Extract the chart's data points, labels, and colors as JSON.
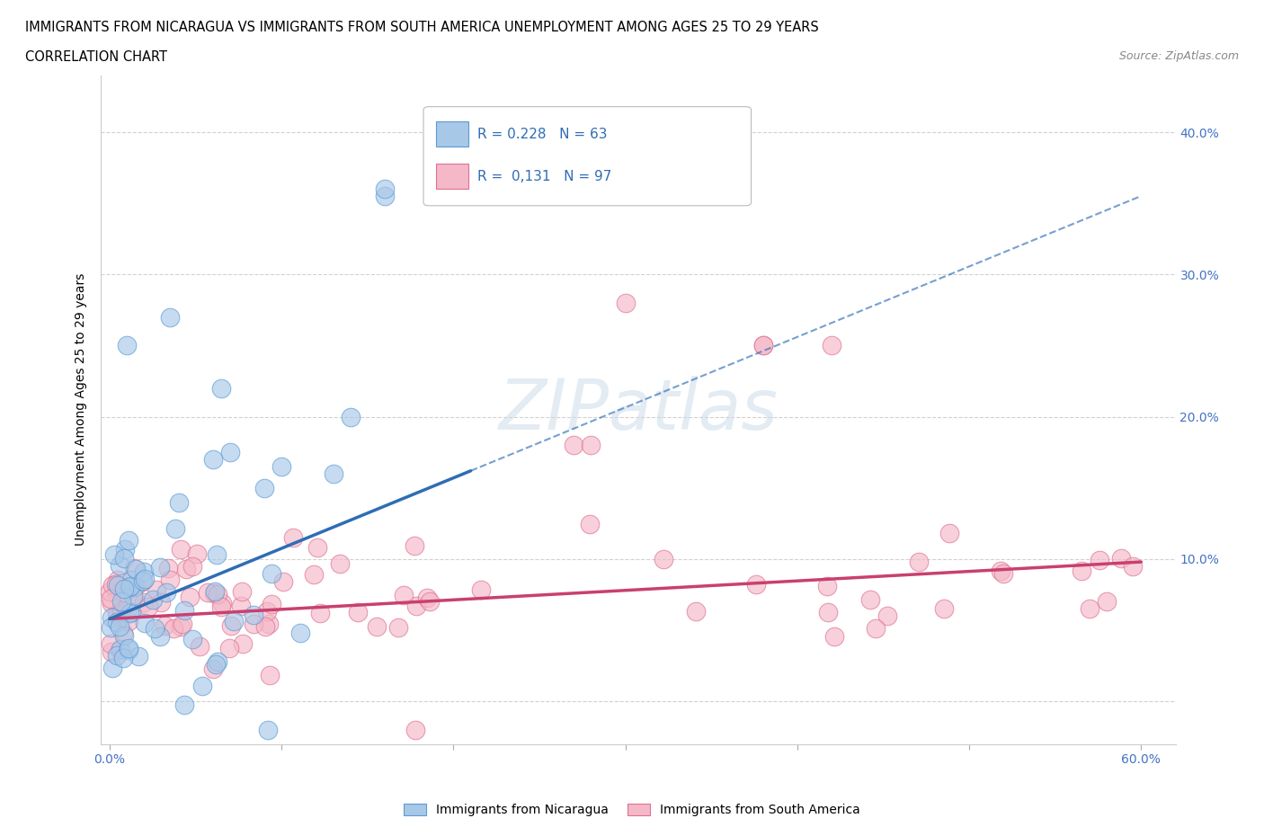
{
  "title_line1": "IMMIGRANTS FROM NICARAGUA VS IMMIGRANTS FROM SOUTH AMERICA UNEMPLOYMENT AMONG AGES 25 TO 29 YEARS",
  "title_line2": "CORRELATION CHART",
  "source_text": "Source: ZipAtlas.com",
  "ylabel": "Unemployment Among Ages 25 to 29 years",
  "xlim": [
    -0.005,
    0.62
  ],
  "ylim": [
    -0.03,
    0.44
  ],
  "nicaragua_color": "#a8c8e8",
  "nicaragua_color_edge": "#5b9bd5",
  "south_america_color": "#f4b8c8",
  "south_america_color_edge": "#e07090",
  "nicaragua_R": 0.228,
  "nicaragua_N": 63,
  "south_america_R": 0.131,
  "south_america_N": 97,
  "trend_nicaragua_color": "#2f6db5",
  "trend_south_america_color": "#c94070",
  "legend_text_color": "#2f6db5",
  "watermark_color": "#c8d8e8",
  "tick_color": "#4472c4",
  "nic_trend_x0": 0.0,
  "nic_trend_y0": 0.058,
  "nic_trend_x1": 0.21,
  "nic_trend_y1": 0.162,
  "nic_trend_dash_x1": 0.6,
  "nic_trend_dash_y1": 0.355,
  "sa_trend_x0": 0.0,
  "sa_trend_y0": 0.058,
  "sa_trend_x1": 0.6,
  "sa_trend_y1": 0.098
}
